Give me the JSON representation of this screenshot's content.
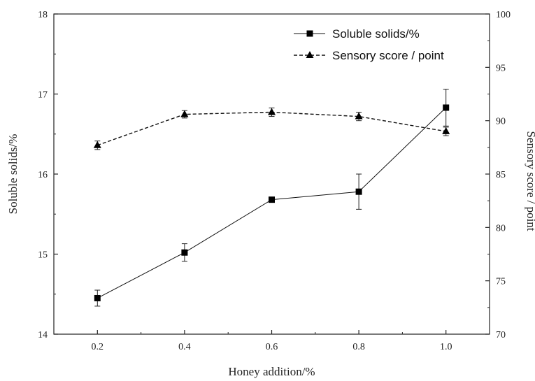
{
  "chart_data": {
    "type": "line",
    "title": "",
    "xlabel": "Honey addition/%",
    "ylabel": "Soluble solids/%",
    "y2label": "Sensory score / point",
    "x": [
      0.2,
      0.4,
      0.6,
      0.8,
      1.0
    ],
    "x_tick_labels": [
      "0.2",
      "0.4",
      "0.6",
      "0.8",
      "1.0"
    ],
    "xlim": [
      0.1,
      1.1
    ],
    "ylim": [
      14,
      18
    ],
    "y_tick_labels": [
      "14",
      "15",
      "16",
      "17",
      "18"
    ],
    "y2lim": [
      70,
      100
    ],
    "y2_tick_labels": [
      "70",
      "75",
      "80",
      "85",
      "90",
      "95",
      "100"
    ],
    "grid": false,
    "legend_position": "top-right",
    "series": [
      {
        "name": "Soluble solids/%",
        "axis": "left",
        "marker": "square",
        "line_style": "solid",
        "values": [
          14.45,
          15.02,
          15.68,
          15.78,
          16.83
        ],
        "errors": [
          0.1,
          0.11,
          0.0,
          0.22,
          0.23
        ]
      },
      {
        "name": "Sensory score / point",
        "axis": "right",
        "marker": "triangle",
        "line_style": "dashed",
        "values": [
          87.7,
          90.6,
          90.8,
          90.4,
          89.0
        ],
        "errors": [
          0.4,
          0.35,
          0.4,
          0.4,
          0.4
        ]
      }
    ]
  }
}
